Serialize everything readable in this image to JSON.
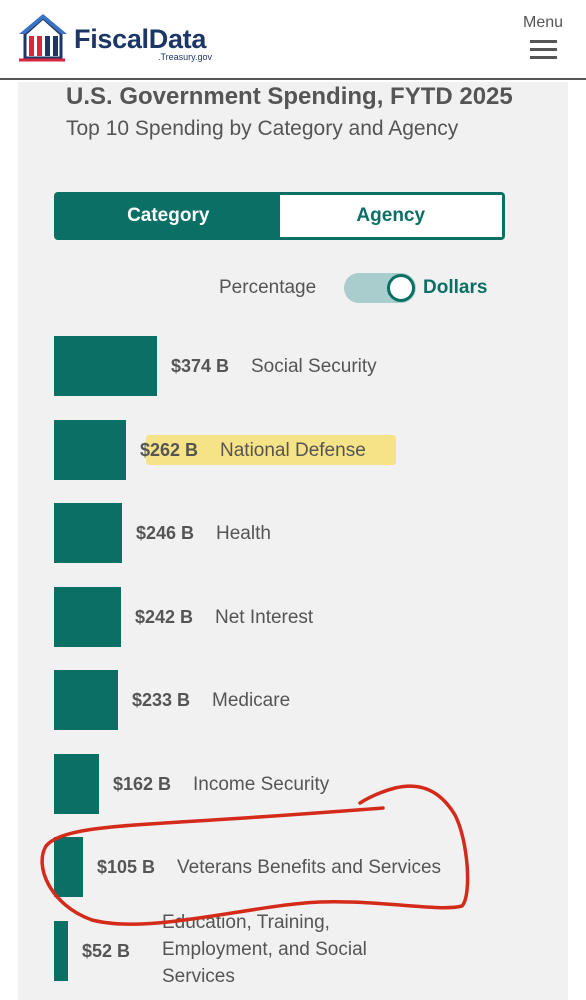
{
  "header": {
    "brand": "FiscalData",
    "brand_sub": ".Treasury.gov",
    "menu_label": "Menu"
  },
  "chart": {
    "title": "U.S. Government Spending, FYTD 2025",
    "subtitle": "Top 10 Spending by Category and Agency",
    "tabs": [
      {
        "label": "Category",
        "active": true
      },
      {
        "label": "Agency",
        "active": false
      }
    ],
    "toggle": {
      "left_label": "Percentage",
      "right_label": "Dollars",
      "selected": "Dollars"
    }
  },
  "chart_data": {
    "type": "bar",
    "orientation": "horizontal",
    "unit": "billions of dollars",
    "categories": [
      "Social Security",
      "National Defense",
      "Health",
      "Net Interest",
      "Medicare",
      "Income Security",
      "Veterans Benefits and Services",
      "Education, Training, Employment, and Social Services"
    ],
    "values": [
      374,
      262,
      246,
      242,
      233,
      162,
      105,
      52
    ],
    "value_labels": [
      "$374 B",
      "$262 B",
      "$246 B",
      "$242 B",
      "$233 B",
      "$162 B",
      "$105 B",
      "$52 B"
    ],
    "label_lines": [
      [
        "Social Security"
      ],
      [
        "National Defense"
      ],
      [
        "Health"
      ],
      [
        "Net Interest"
      ],
      [
        "Medicare"
      ],
      [
        "Income Security"
      ],
      [
        "Veterans Benefits and Services"
      ],
      [
        "Education, Training,",
        "Employment, and Social",
        "Services"
      ]
    ],
    "highlighted_category": "National Defense",
    "circled_category": "Veterans Benefits and Services"
  },
  "colors": {
    "bar": "#0a7066",
    "highlight": "#f6e07b",
    "annotation": "#d42a1a",
    "brand": "#1c3665"
  }
}
